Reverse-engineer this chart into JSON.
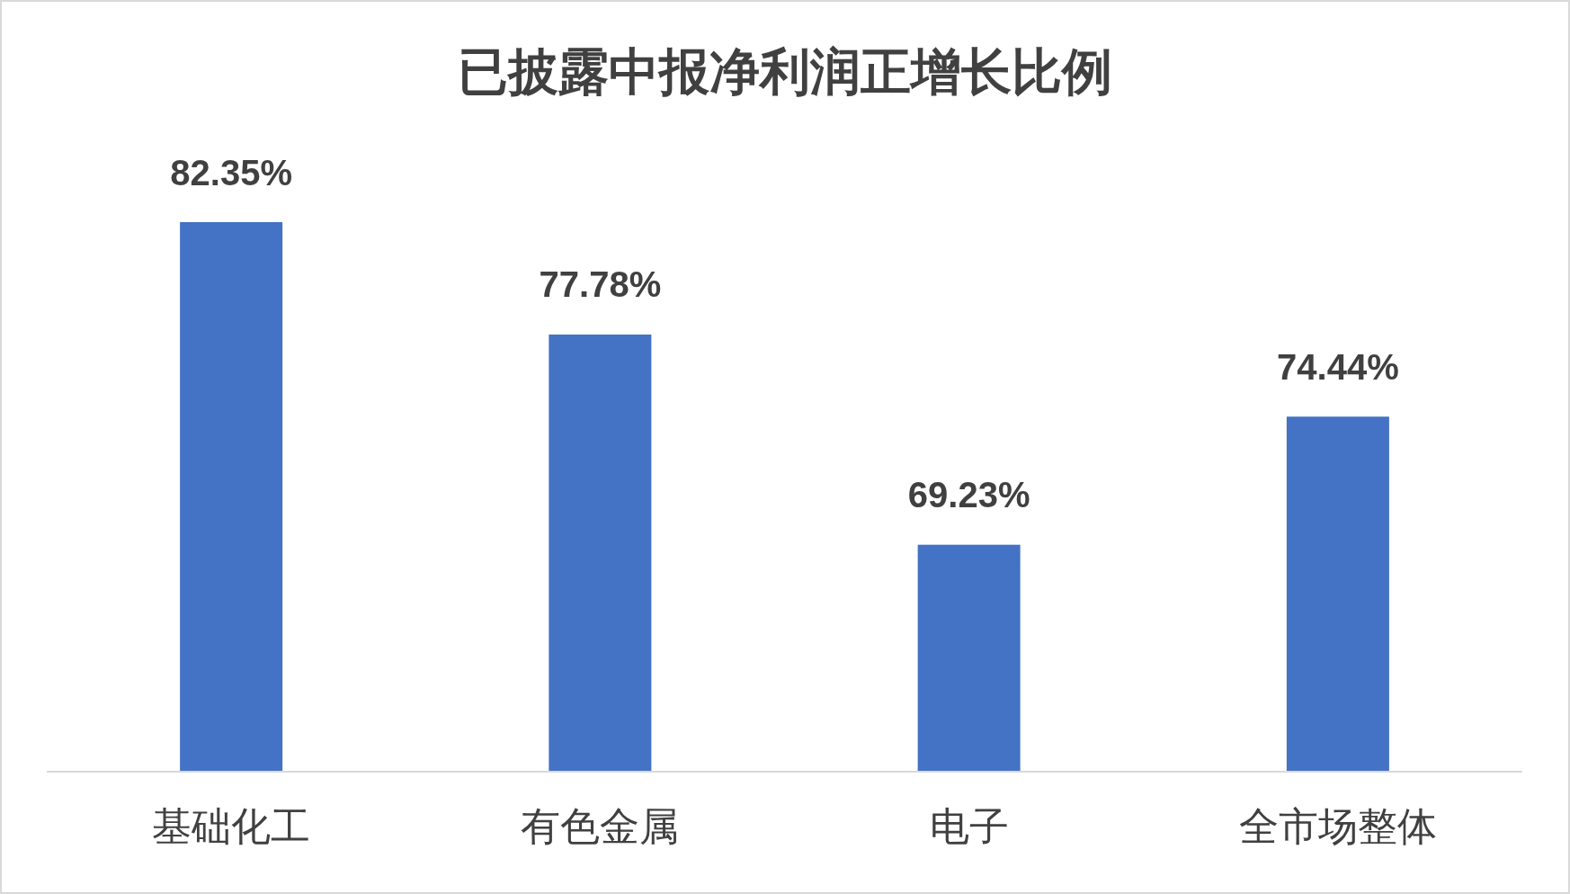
{
  "chart_data": {
    "type": "bar",
    "title": "已披露中报净利润正增长比例",
    "categories": [
      "基础化工",
      "有色金属",
      "电子",
      "全市场整体"
    ],
    "values": [
      82.35,
      77.78,
      69.23,
      74.44
    ],
    "color": "#4472c4",
    "ylim": [
      60,
      82.35
    ],
    "value_labels": [
      "82.35%",
      "77.78%",
      "69.23%",
      "74.44%"
    ],
    "tick_labels": "x"
  }
}
